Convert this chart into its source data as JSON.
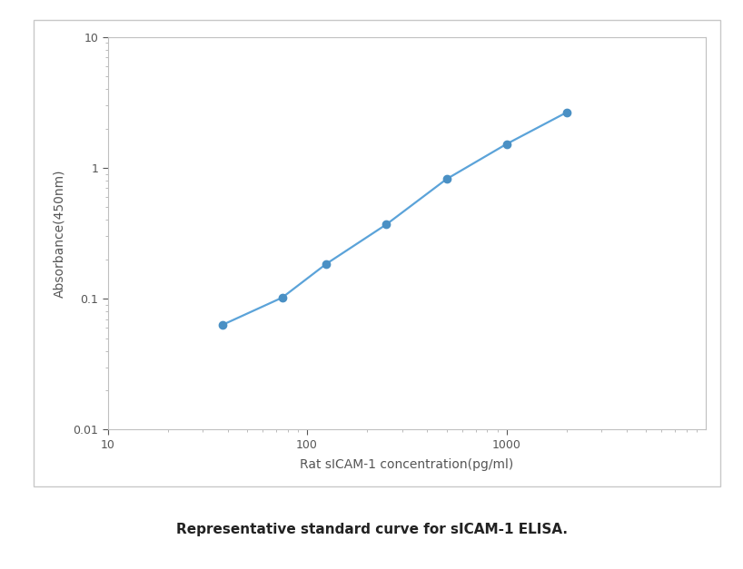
{
  "x": [
    37.5,
    75,
    125,
    250,
    500,
    1000,
    2000
  ],
  "y": [
    0.063,
    0.102,
    0.185,
    0.37,
    0.82,
    1.52,
    2.65
  ],
  "line_color": "#5BA3D9",
  "marker_color": "#4A90C4",
  "marker_size": 6,
  "line_width": 1.6,
  "xlabel": "Rat sICAM-1 concentration(pg/ml)",
  "ylabel": "Absorbance(450nm)",
  "xlim": [
    10,
    10000
  ],
  "ylim": [
    0.01,
    10
  ],
  "xticks": [
    10,
    100,
    1000
  ],
  "yticks": [
    0.01,
    0.1,
    1,
    10
  ],
  "caption": "Representative standard curve for sICAM-1 ELISA.",
  "caption_fontsize": 11,
  "axis_label_fontsize": 10,
  "tick_fontsize": 9,
  "background_color": "#ffffff",
  "plot_bg_color": "#ffffff",
  "border_color": "#c8c8c8",
  "spine_color": "#c0c0c0"
}
